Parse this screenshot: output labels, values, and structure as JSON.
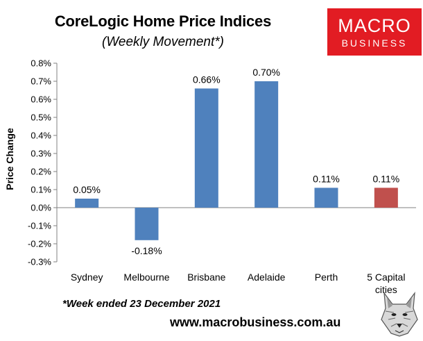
{
  "header": {
    "title": "CoreLogic Home Price Indices",
    "subtitle": "(Weekly Movement*)"
  },
  "logo": {
    "line1": "MACRO",
    "line2": "BUSINESS",
    "color": "#e21c23"
  },
  "footer": {
    "footnote": "*Week ended 23 December 2021",
    "website": "www.macrobusiness.com.au",
    "mascot_icon": "wolf-icon"
  },
  "chart_data": {
    "type": "bar",
    "title": "CoreLogic Home Price Indices",
    "subtitle": "(Weekly Movement*)",
    "xlabel": "",
    "ylabel": "Price Change",
    "ylim": [
      -0.3,
      0.8
    ],
    "yticks": [
      "0.8%",
      "0.7%",
      "0.6%",
      "0.5%",
      "0.4%",
      "0.3%",
      "0.2%",
      "0.1%",
      "0.0%",
      "-0.1%",
      "-0.2%",
      "-0.3%"
    ],
    "ytick_values": [
      0.8,
      0.7,
      0.6,
      0.5,
      0.4,
      0.3,
      0.2,
      0.1,
      0.0,
      -0.1,
      -0.2,
      -0.3
    ],
    "categories": [
      "Sydney",
      "Melbourne",
      "Brisbane",
      "Adelaide",
      "Perth",
      "5 Capital cities"
    ],
    "category_lines": [
      [
        "Sydney"
      ],
      [
        "Melbourne"
      ],
      [
        "Brisbane"
      ],
      [
        "Adelaide"
      ],
      [
        "Perth"
      ],
      [
        "5 Capital",
        "cities"
      ]
    ],
    "values": [
      0.05,
      -0.18,
      0.66,
      0.7,
      0.11,
      0.11
    ],
    "data_labels": [
      "0.05%",
      "-0.18%",
      "0.66%",
      "0.70%",
      "0.11%",
      "0.11%"
    ],
    "colors": [
      "#4f81bd",
      "#4f81bd",
      "#4f81bd",
      "#4f81bd",
      "#4f81bd",
      "#c0504d"
    ],
    "grid": false,
    "legend": "none"
  }
}
